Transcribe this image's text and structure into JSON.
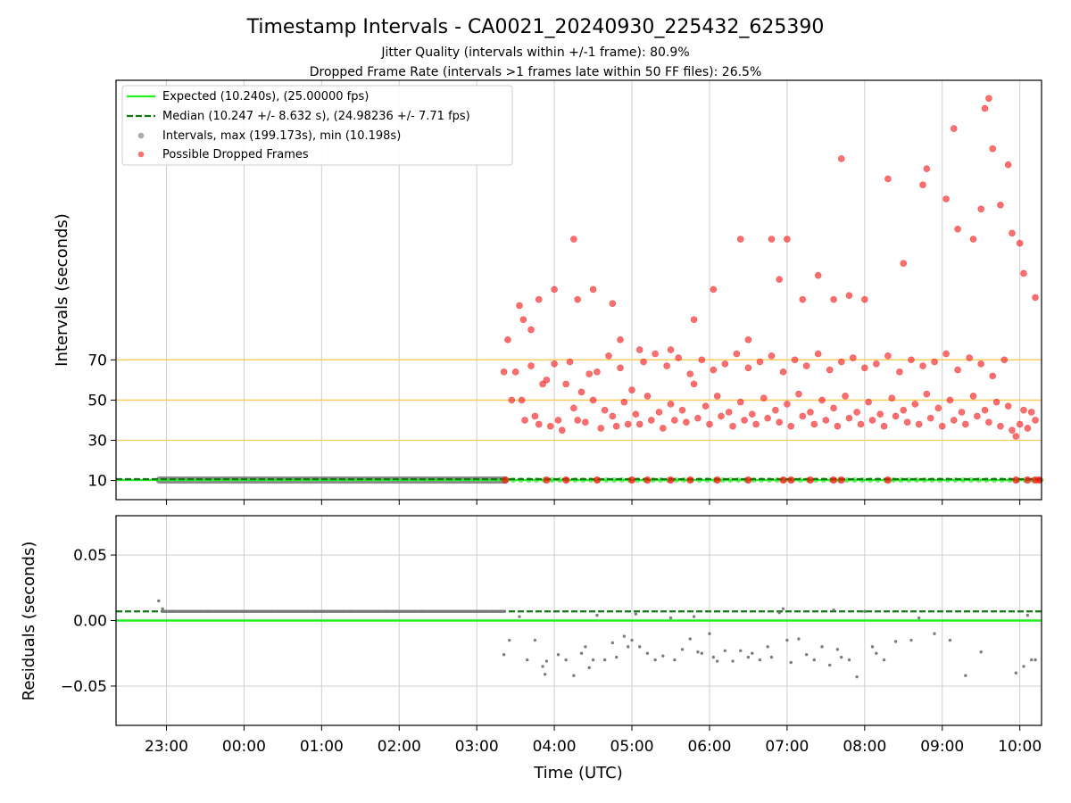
{
  "chart_data": [
    {
      "type": "scatter",
      "title": "Timestamp Intervals - CA0021_20240930_225432_625390",
      "subtitle_lines": [
        "Jitter Quality (intervals within +/-1 frame): 80.9%",
        "Dropped Frame Rate (intervals >1 frames late within 50 FF files): 26.5%"
      ],
      "ylabel": "Intervals (seconds)",
      "xlim_hours": [
        -1.65,
        10.28
      ],
      "ylim": [
        0.5,
        209
      ],
      "y_ticks": [
        10,
        30,
        50,
        70
      ],
      "y_tick_labels": [
        "10",
        "30",
        "50",
        "70"
      ],
      "reference_lines": [
        30,
        50,
        70
      ],
      "grid": true,
      "legend_placement": "upper-left",
      "legend": [
        {
          "label": "Expected (10.240s), (25.00000 fps)",
          "style": "solid-line",
          "color": "#22ee22"
        },
        {
          "label": "Median (10.247 +/- 8.632 s), (24.98236 +/- 7.71 fps)",
          "style": "dashed-line",
          "color": "#117711"
        },
        {
          "label": "Intervals, max (199.173s), min (10.198s)",
          "style": "marker",
          "color": "#888888"
        },
        {
          "label": "Possible Dropped Frames",
          "style": "marker",
          "color": "#ff3333"
        }
      ],
      "expected_interval": 10.24,
      "median_interval": 10.247,
      "normal_interval_span_hours": [
        -1.1,
        3.37
      ],
      "dropped_frames": [
        [
          3.35,
          64
        ],
        [
          3.4,
          80
        ],
        [
          3.45,
          50
        ],
        [
          3.5,
          64
        ],
        [
          3.55,
          97
        ],
        [
          3.58,
          50
        ],
        [
          3.6,
          90
        ],
        [
          3.62,
          40
        ],
        [
          3.7,
          67
        ],
        [
          3.75,
          42
        ],
        [
          3.8,
          38
        ],
        [
          3.85,
          58
        ],
        [
          3.9,
          60
        ],
        [
          3.95,
          37
        ],
        [
          4.0,
          68
        ],
        [
          4.05,
          40
        ],
        [
          4.1,
          35
        ],
        [
          4.15,
          58
        ],
        [
          4.2,
          69
        ],
        [
          4.25,
          46
        ],
        [
          4.3,
          40
        ],
        [
          4.35,
          54
        ],
        [
          4.4,
          39
        ],
        [
          4.45,
          63
        ],
        [
          4.5,
          50
        ],
        [
          4.55,
          64
        ],
        [
          4.6,
          36
        ],
        [
          4.65,
          45
        ],
        [
          4.7,
          72
        ],
        [
          4.75,
          42
        ],
        [
          4.8,
          37
        ],
        [
          4.85,
          66
        ],
        [
          4.9,
          49
        ],
        [
          4.95,
          38
        ],
        [
          5.0,
          55
        ],
        [
          5.05,
          43
        ],
        [
          5.1,
          38
        ],
        [
          5.15,
          69
        ],
        [
          5.2,
          52
        ],
        [
          5.25,
          40
        ],
        [
          5.3,
          73
        ],
        [
          5.35,
          44
        ],
        [
          5.4,
          36
        ],
        [
          5.45,
          67
        ],
        [
          5.5,
          48
        ],
        [
          5.55,
          40
        ],
        [
          5.6,
          71
        ],
        [
          5.65,
          45
        ],
        [
          5.7,
          39
        ],
        [
          5.75,
          63
        ],
        [
          5.8,
          58
        ],
        [
          5.85,
          41
        ],
        [
          5.9,
          70
        ],
        [
          5.95,
          47
        ],
        [
          6.0,
          38
        ],
        [
          6.05,
          65
        ],
        [
          6.1,
          52
        ],
        [
          6.15,
          42
        ],
        [
          6.2,
          68
        ],
        [
          6.25,
          44
        ],
        [
          6.3,
          37
        ],
        [
          6.35,
          73
        ],
        [
          6.4,
          49
        ],
        [
          6.45,
          40
        ],
        [
          6.5,
          66
        ],
        [
          6.55,
          43
        ],
        [
          6.6,
          38
        ],
        [
          6.65,
          69
        ],
        [
          6.7,
          51
        ],
        [
          6.75,
          41
        ],
        [
          6.8,
          72
        ],
        [
          6.85,
          45
        ],
        [
          6.9,
          39
        ],
        [
          6.95,
          64
        ],
        [
          7.0,
          48
        ],
        [
          7.05,
          37
        ],
        [
          7.1,
          70
        ],
        [
          7.15,
          53
        ],
        [
          7.2,
          42
        ],
        [
          7.25,
          67
        ],
        [
          7.3,
          44
        ],
        [
          7.35,
          38
        ],
        [
          7.4,
          73
        ],
        [
          7.45,
          50
        ],
        [
          7.5,
          40
        ],
        [
          7.55,
          65
        ],
        [
          7.6,
          46
        ],
        [
          7.65,
          37
        ],
        [
          7.7,
          69
        ],
        [
          7.75,
          52
        ],
        [
          7.8,
          41
        ],
        [
          7.85,
          71
        ],
        [
          7.9,
          44
        ],
        [
          7.95,
          38
        ],
        [
          8.0,
          66
        ],
        [
          8.05,
          49
        ],
        [
          8.1,
          40
        ],
        [
          8.15,
          68
        ],
        [
          8.2,
          43
        ],
        [
          8.25,
          37
        ],
        [
          8.3,
          72
        ],
        [
          8.35,
          51
        ],
        [
          8.4,
          42
        ],
        [
          8.45,
          64
        ],
        [
          8.5,
          45
        ],
        [
          8.55,
          39
        ],
        [
          8.6,
          70
        ],
        [
          8.65,
          48
        ],
        [
          8.7,
          38
        ],
        [
          8.75,
          67
        ],
        [
          8.8,
          53
        ],
        [
          8.85,
          41
        ],
        [
          8.9,
          69
        ],
        [
          8.95,
          46
        ],
        [
          9.0,
          37
        ],
        [
          9.05,
          73
        ],
        [
          9.1,
          50
        ],
        [
          9.15,
          40
        ],
        [
          9.2,
          65
        ],
        [
          9.25,
          44
        ],
        [
          9.3,
          38
        ],
        [
          9.35,
          71
        ],
        [
          9.4,
          52
        ],
        [
          9.45,
          42
        ],
        [
          9.5,
          68
        ],
        [
          9.55,
          45
        ],
        [
          9.6,
          39
        ],
        [
          9.65,
          62
        ],
        [
          9.7,
          49
        ],
        [
          9.75,
          37
        ],
        [
          9.8,
          70
        ],
        [
          9.85,
          47
        ],
        [
          9.9,
          35
        ],
        [
          9.95,
          32
        ],
        [
          10.0,
          38
        ],
        [
          10.05,
          45
        ],
        [
          10.1,
          36
        ],
        [
          10.15,
          44
        ],
        [
          10.2,
          40
        ],
        [
          3.7,
          85
        ],
        [
          3.8,
          100
        ],
        [
          4.0,
          105
        ],
        [
          4.25,
          130
        ],
        [
          4.3,
          100
        ],
        [
          4.5,
          105
        ],
        [
          4.75,
          98
        ],
        [
          4.85,
          80
        ],
        [
          5.1,
          75
        ],
        [
          5.5,
          75
        ],
        [
          5.8,
          90
        ],
        [
          6.05,
          105
        ],
        [
          6.4,
          130
        ],
        [
          6.5,
          80
        ],
        [
          6.8,
          130
        ],
        [
          6.9,
          110
        ],
        [
          7.0,
          130
        ],
        [
          7.2,
          100
        ],
        [
          7.4,
          112
        ],
        [
          7.6,
          100
        ],
        [
          7.7,
          170
        ],
        [
          7.8,
          102
        ],
        [
          8.0,
          100
        ],
        [
          8.3,
          160
        ],
        [
          8.5,
          118
        ],
        [
          8.75,
          157
        ],
        [
          8.8,
          165
        ],
        [
          9.05,
          150
        ],
        [
          9.15,
          185
        ],
        [
          9.2,
          135
        ],
        [
          9.4,
          130
        ],
        [
          9.5,
          145
        ],
        [
          9.55,
          195
        ],
        [
          9.6,
          200
        ],
        [
          9.65,
          175
        ],
        [
          9.75,
          147
        ],
        [
          9.85,
          167
        ],
        [
          9.9,
          133
        ],
        [
          10.0,
          128
        ],
        [
          10.05,
          113
        ],
        [
          10.2,
          101
        ]
      ],
      "dropped_frames_near_expected_hours": [
        3.37,
        3.9,
        4.15,
        4.55,
        5.0,
        5.2,
        5.5,
        5.75,
        6.1,
        6.5,
        6.95,
        7.05,
        7.3,
        7.6,
        7.7,
        8.3,
        9.95,
        10.1,
        10.2,
        10.25
      ]
    },
    {
      "type": "scatter",
      "xlabel": "Time (UTC)",
      "ylabel": "Residuals (seconds)",
      "xlim_hours": [
        -1.65,
        10.28
      ],
      "ylim": [
        -0.08,
        0.08
      ],
      "y_ticks": [
        -0.05,
        0.0,
        0.05
      ],
      "y_tick_labels": [
        "−0.05",
        "0.00",
        "0.05"
      ],
      "x_ticks_hours": [
        -1,
        0,
        1,
        2,
        3,
        4,
        5,
        6,
        7,
        8,
        9,
        10
      ],
      "x_tick_labels": [
        "23:00",
        "00:00",
        "01:00",
        "02:00",
        "03:00",
        "04:00",
        "05:00",
        "06:00",
        "07:00",
        "08:00",
        "09:00",
        "10:00"
      ],
      "grid": true,
      "expected_residual": 0.0,
      "median_residual": 0.007,
      "cluster_residual": 0.007,
      "cluster_span_hours": [
        -1.05,
        3.37
      ],
      "residuals": [
        [
          -1.1,
          0.015
        ],
        [
          -1.05,
          0.009
        ],
        [
          3.35,
          -0.026
        ],
        [
          3.42,
          -0.015
        ],
        [
          3.55,
          0.003
        ],
        [
          3.65,
          -0.03
        ],
        [
          3.75,
          -0.015
        ],
        [
          3.85,
          -0.035
        ],
        [
          3.88,
          -0.041
        ],
        [
          3.9,
          -0.031
        ],
        [
          4.05,
          -0.026
        ],
        [
          4.15,
          -0.03
        ],
        [
          4.25,
          -0.042
        ],
        [
          4.35,
          -0.025
        ],
        [
          4.4,
          -0.02
        ],
        [
          4.45,
          -0.036
        ],
        [
          4.5,
          -0.03
        ],
        [
          4.55,
          0.004
        ],
        [
          4.65,
          -0.03
        ],
        [
          4.75,
          -0.017
        ],
        [
          4.8,
          -0.028
        ],
        [
          4.9,
          -0.012
        ],
        [
          4.95,
          -0.02
        ],
        [
          5.0,
          -0.015
        ],
        [
          5.05,
          0.005
        ],
        [
          5.1,
          -0.02
        ],
        [
          5.2,
          -0.025
        ],
        [
          5.3,
          -0.03
        ],
        [
          5.4,
          -0.027
        ],
        [
          5.5,
          0.002
        ],
        [
          5.55,
          -0.03
        ],
        [
          5.65,
          -0.022
        ],
        [
          5.75,
          -0.014
        ],
        [
          5.8,
          0.003
        ],
        [
          5.85,
          -0.024
        ],
        [
          5.9,
          -0.025
        ],
        [
          6.0,
          -0.01
        ],
        [
          6.05,
          -0.028
        ],
        [
          6.1,
          -0.031
        ],
        [
          6.2,
          -0.023
        ],
        [
          6.3,
          -0.031
        ],
        [
          6.4,
          -0.023
        ],
        [
          6.5,
          -0.028
        ],
        [
          6.55,
          -0.025
        ],
        [
          6.65,
          -0.03
        ],
        [
          6.75,
          -0.02
        ],
        [
          6.8,
          -0.028
        ],
        [
          6.9,
          0.006
        ],
        [
          6.95,
          0.009
        ],
        [
          7.0,
          -0.015
        ],
        [
          7.05,
          -0.032
        ],
        [
          7.15,
          -0.014
        ],
        [
          7.25,
          -0.026
        ],
        [
          7.35,
          -0.03
        ],
        [
          7.45,
          -0.02
        ],
        [
          7.55,
          -0.034
        ],
        [
          7.6,
          0.008
        ],
        [
          7.65,
          -0.022
        ],
        [
          7.7,
          -0.028
        ],
        [
          7.8,
          -0.03
        ],
        [
          7.9,
          -0.043
        ],
        [
          8.0,
          0.007
        ],
        [
          8.1,
          -0.02
        ],
        [
          8.15,
          -0.025
        ],
        [
          8.25,
          -0.03
        ],
        [
          8.4,
          -0.016
        ],
        [
          8.6,
          -0.015
        ],
        [
          8.7,
          0.002
        ],
        [
          8.9,
          -0.01
        ],
        [
          9.1,
          -0.015
        ],
        [
          9.3,
          -0.042
        ],
        [
          9.5,
          -0.024
        ],
        [
          9.95,
          -0.04
        ],
        [
          10.05,
          -0.035
        ],
        [
          10.1,
          0.004
        ],
        [
          10.15,
          -0.03
        ],
        [
          10.2,
          -0.03
        ]
      ]
    }
  ]
}
